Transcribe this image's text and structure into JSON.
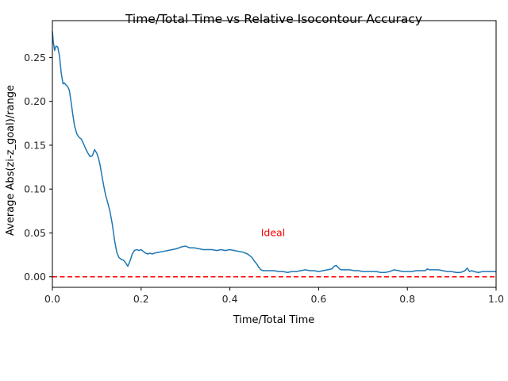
{
  "chart_data": {
    "type": "line",
    "title": "Time/Total Time vs Relative Isocontour Accuracy",
    "xlabel": "Time/Total Time",
    "ylabel": "Average Abs(zi-z_goal)/range",
    "xlim": [
      0.0,
      1.0
    ],
    "ylim": [
      -0.012,
      0.292
    ],
    "xticks": [
      0.0,
      0.2,
      0.4,
      0.6,
      0.8,
      1.0
    ],
    "xtick_labels": [
      "0.0",
      "0.2",
      "0.4",
      "0.6",
      "0.8",
      "1.0"
    ],
    "yticks": [
      0.0,
      0.05,
      0.1,
      0.15,
      0.2,
      0.25
    ],
    "ytick_labels": [
      "0.00",
      "0.05",
      "0.10",
      "0.15",
      "0.20",
      "0.25"
    ],
    "grid": false,
    "series": [
      {
        "color": "#1f77b4",
        "style": "solid",
        "x": [
          0.0,
          0.002,
          0.005,
          0.008,
          0.012,
          0.016,
          0.02,
          0.024,
          0.027,
          0.03,
          0.034,
          0.038,
          0.042,
          0.046,
          0.05,
          0.055,
          0.06,
          0.065,
          0.07,
          0.075,
          0.08,
          0.085,
          0.09,
          0.095,
          0.1,
          0.104,
          0.108,
          0.112,
          0.116,
          0.12,
          0.125,
          0.13,
          0.135,
          0.14,
          0.145,
          0.15,
          0.155,
          0.16,
          0.165,
          0.17,
          0.175,
          0.18,
          0.185,
          0.19,
          0.195,
          0.2,
          0.205,
          0.21,
          0.215,
          0.22,
          0.225,
          0.23,
          0.24,
          0.25,
          0.26,
          0.27,
          0.28,
          0.29,
          0.3,
          0.305,
          0.31,
          0.32,
          0.33,
          0.34,
          0.35,
          0.36,
          0.37,
          0.38,
          0.39,
          0.4,
          0.41,
          0.42,
          0.43,
          0.44,
          0.445,
          0.45,
          0.455,
          0.46,
          0.465,
          0.47,
          0.475,
          0.48,
          0.49,
          0.5,
          0.51,
          0.52,
          0.53,
          0.54,
          0.55,
          0.56,
          0.57,
          0.58,
          0.59,
          0.6,
          0.61,
          0.62,
          0.63,
          0.635,
          0.64,
          0.645,
          0.65,
          0.66,
          0.67,
          0.68,
          0.69,
          0.7,
          0.71,
          0.72,
          0.73,
          0.74,
          0.75,
          0.76,
          0.77,
          0.78,
          0.79,
          0.8,
          0.81,
          0.82,
          0.83,
          0.84,
          0.845,
          0.85,
          0.86,
          0.87,
          0.88,
          0.89,
          0.9,
          0.91,
          0.92,
          0.93,
          0.935,
          0.94,
          0.945,
          0.95,
          0.96,
          0.97,
          0.98,
          0.99,
          1.0
        ],
        "y": [
          0.28,
          0.268,
          0.258,
          0.263,
          0.262,
          0.252,
          0.232,
          0.22,
          0.221,
          0.219,
          0.217,
          0.213,
          0.2,
          0.185,
          0.172,
          0.163,
          0.159,
          0.157,
          0.152,
          0.146,
          0.141,
          0.137,
          0.138,
          0.145,
          0.141,
          0.135,
          0.126,
          0.114,
          0.103,
          0.093,
          0.084,
          0.074,
          0.06,
          0.042,
          0.028,
          0.022,
          0.02,
          0.019,
          0.016,
          0.012,
          0.018,
          0.026,
          0.03,
          0.031,
          0.03,
          0.031,
          0.029,
          0.027,
          0.026,
          0.027,
          0.026,
          0.027,
          0.028,
          0.029,
          0.03,
          0.031,
          0.032,
          0.034,
          0.035,
          0.034,
          0.033,
          0.033,
          0.032,
          0.031,
          0.031,
          0.031,
          0.03,
          0.031,
          0.03,
          0.031,
          0.03,
          0.029,
          0.028,
          0.026,
          0.024,
          0.022,
          0.018,
          0.015,
          0.011,
          0.008,
          0.007,
          0.007,
          0.007,
          0.007,
          0.006,
          0.006,
          0.005,
          0.006,
          0.006,
          0.007,
          0.008,
          0.007,
          0.007,
          0.006,
          0.007,
          0.008,
          0.009,
          0.012,
          0.013,
          0.01,
          0.008,
          0.008,
          0.008,
          0.007,
          0.007,
          0.006,
          0.006,
          0.006,
          0.006,
          0.005,
          0.005,
          0.006,
          0.008,
          0.007,
          0.006,
          0.006,
          0.006,
          0.007,
          0.007,
          0.007,
          0.009,
          0.008,
          0.008,
          0.008,
          0.007,
          0.006,
          0.006,
          0.005,
          0.005,
          0.007,
          0.01,
          0.006,
          0.007,
          0.006,
          0.005,
          0.006,
          0.006,
          0.006,
          0.006
        ]
      },
      {
        "color": "#ff0000",
        "style": "dashed",
        "x": [
          0.0,
          1.0
        ],
        "y": [
          0.0,
          0.0
        ]
      }
    ],
    "annotations": [
      {
        "text": "Ideal",
        "x": 0.47,
        "y": 0.05,
        "color": "#ff0000"
      }
    ]
  }
}
